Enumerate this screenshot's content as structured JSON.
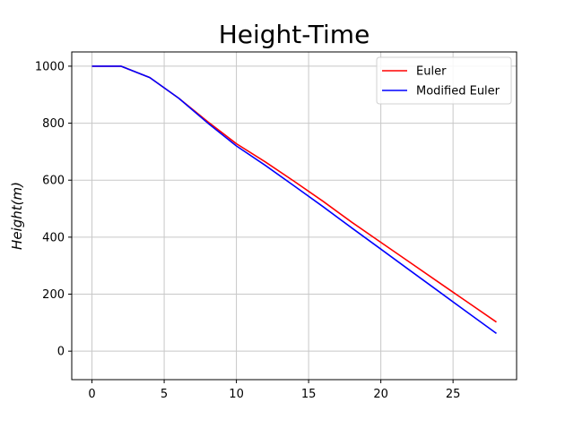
{
  "chart_data": {
    "type": "line",
    "title": "Height-Time",
    "xlabel": "",
    "ylabel": "Height(m)",
    "xlim": [
      -1.4,
      29.4
    ],
    "ylim": [
      -100,
      1050
    ],
    "xticks": [
      0,
      5,
      10,
      15,
      20,
      25
    ],
    "yticks": [
      0,
      200,
      400,
      600,
      800,
      1000
    ],
    "grid": true,
    "legend_position": "top-right",
    "series": [
      {
        "name": "Euler",
        "color": "#ff0000",
        "x": [
          0,
          2,
          4,
          6,
          8,
          10,
          12,
          14,
          16,
          18,
          20,
          22,
          24,
          26,
          28
        ],
        "y": [
          1000,
          1000,
          960,
          888,
          806,
          728,
          664,
          596,
          526,
          452,
          382,
          312,
          242,
          172,
          102
        ]
      },
      {
        "name": "Modified Euler",
        "color": "#0000ff",
        "x": [
          0,
          2,
          4,
          6,
          8,
          10,
          12,
          14,
          16,
          18,
          20,
          22,
          24,
          26,
          28
        ],
        "y": [
          1000,
          1000,
          960,
          888,
          801,
          720,
          652,
          580,
          507,
          432,
          358,
          284,
          210,
          136,
          62
        ]
      }
    ]
  }
}
